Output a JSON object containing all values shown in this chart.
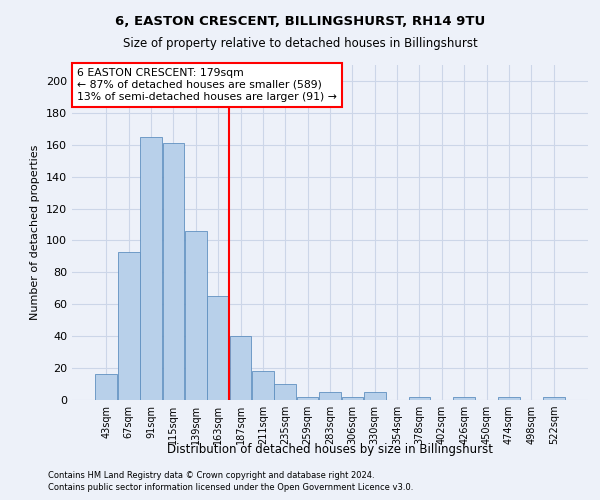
{
  "title1": "6, EASTON CRESCENT, BILLINGSHURST, RH14 9TU",
  "title2": "Size of property relative to detached houses in Billingshurst",
  "xlabel": "Distribution of detached houses by size in Billingshurst",
  "ylabel": "Number of detached properties",
  "bar_color": "#b8d0ea",
  "bar_edge_color": "#6090c0",
  "categories": [
    "43sqm",
    "67sqm",
    "91sqm",
    "115sqm",
    "139sqm",
    "163sqm",
    "187sqm",
    "211sqm",
    "235sqm",
    "259sqm",
    "283sqm",
    "306sqm",
    "330sqm",
    "354sqm",
    "378sqm",
    "402sqm",
    "426sqm",
    "450sqm",
    "474sqm",
    "498sqm",
    "522sqm"
  ],
  "values": [
    16,
    93,
    165,
    161,
    106,
    65,
    40,
    18,
    10,
    2,
    5,
    2,
    5,
    0,
    2,
    0,
    2,
    0,
    2,
    0,
    2
  ],
  "vline_x": 6,
  "vline_color": "red",
  "annotation_line1": "6 EASTON CRESCENT: 179sqm",
  "annotation_line2": "← 87% of detached houses are smaller (589)",
  "annotation_line3": "13% of semi-detached houses are larger (91) →",
  "annotation_box_color": "white",
  "annotation_box_edge_color": "red",
  "ylim": [
    0,
    210
  ],
  "yticks": [
    0,
    20,
    40,
    60,
    80,
    100,
    120,
    140,
    160,
    180,
    200
  ],
  "footnote1": "Contains HM Land Registry data © Crown copyright and database right 2024.",
  "footnote2": "Contains public sector information licensed under the Open Government Licence v3.0.",
  "grid_color": "#ccd6e8",
  "background_color": "#edf1f9"
}
